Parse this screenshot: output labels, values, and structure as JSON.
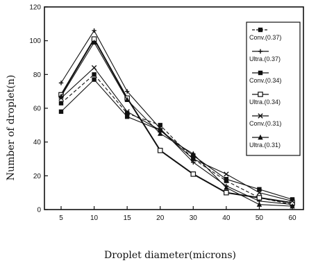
{
  "chart_data": {
    "type": "line",
    "title": "",
    "xlabel": "Droplet diameter(microns)",
    "ylabel": "Number of droplet(n)",
    "categories": [
      "5",
      "10",
      "15",
      "20",
      "30",
      "40",
      "50",
      "60"
    ],
    "ylim": [
      0,
      120
    ],
    "yticks": [
      "0",
      "20",
      "40",
      "60",
      "80",
      "100",
      "120"
    ],
    "grid": false,
    "legend_position": "right",
    "series": [
      {
        "name": "Conv.(0.37)",
        "marker": "square",
        "dash": "dash",
        "values": [
          63,
          80,
          57,
          50,
          30,
          17,
          7,
          3
        ]
      },
      {
        "name": "Ultra.(0.37)",
        "marker": "plus",
        "dash": "solid",
        "values": [
          75,
          106,
          70,
          48,
          28,
          14,
          5,
          3
        ]
      },
      {
        "name": "Conv.(0.34)",
        "marker": "square",
        "dash": "solid",
        "values": [
          58,
          77,
          55,
          47,
          32,
          18,
          12,
          6
        ]
      },
      {
        "name": "Ultra.(0.34)",
        "marker": "square-open",
        "dash": "solid",
        "values": [
          68,
          101,
          66,
          35,
          21,
          10,
          7,
          4
        ]
      },
      {
        "name": "Conv.(0.31)",
        "marker": "x",
        "dash": "solid",
        "values": [
          66,
          84,
          58,
          47,
          30,
          21,
          10,
          5
        ]
      },
      {
        "name": "Ultra.(0.31)",
        "marker": "triangle",
        "dash": "solid",
        "values": [
          67,
          99,
          65,
          45,
          33,
          13,
          3,
          2
        ]
      }
    ]
  }
}
